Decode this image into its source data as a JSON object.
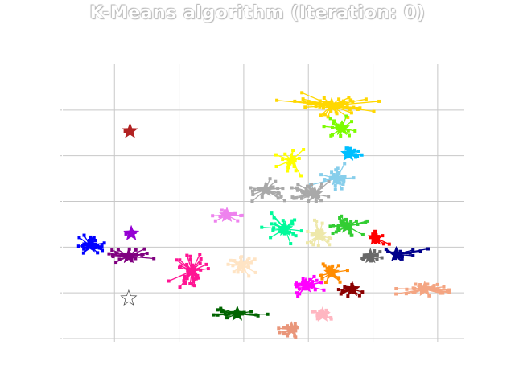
{
  "chart_data": {
    "type": "scatter",
    "title": "K-Means algorithm (Iteration: 0)",
    "xlabel": "",
    "ylabel": "",
    "xlim": [
      -9,
      22
    ],
    "ylim": [
      -20,
      10
    ],
    "grid": true,
    "tick_labels_visible": false,
    "xticks": [
      -5,
      0,
      5,
      10,
      15,
      20
    ],
    "yticks": [
      -20,
      -15,
      -10,
      -5,
      0,
      5
    ],
    "clusters": [
      {
        "color": "#ffd700",
        "centroid": [
          11.8,
          5.5
        ],
        "spread": [
          5.8,
          2.2
        ],
        "n": 50,
        "marker": "point"
      },
      {
        "color": "#7cfc00",
        "centroid": [
          12.6,
          3.0
        ],
        "spread": [
          2.6,
          2.2
        ],
        "n": 16,
        "marker": "point"
      },
      {
        "color": "#00bfff",
        "centroid": [
          13.1,
          0.2
        ],
        "spread": [
          1.8,
          1.2
        ],
        "n": 16,
        "marker": "point"
      },
      {
        "color": "#ffff00",
        "centroid": [
          8.7,
          -0.5
        ],
        "spread": [
          2.0,
          2.4
        ],
        "n": 18,
        "marker": "point"
      },
      {
        "color": "#87ceeb",
        "centroid": [
          12.2,
          -2.5
        ],
        "spread": [
          2.8,
          2.4
        ],
        "n": 24,
        "marker": "point"
      },
      {
        "color": "#a9a9a9",
        "centroid": [
          6.7,
          -3.7
        ],
        "spread": [
          3.4,
          2.0
        ],
        "n": 22,
        "marker": "point"
      },
      {
        "color": "#a9a9a9",
        "centroid": [
          10.5,
          -4.2
        ],
        "spread": [
          3.6,
          2.0
        ],
        "n": 30,
        "marker": "point"
      },
      {
        "color": "#ee82ee",
        "centroid": [
          3.7,
          -6.5
        ],
        "spread": [
          2.0,
          1.4
        ],
        "n": 14,
        "marker": "point"
      },
      {
        "color": "#00fa9a",
        "centroid": [
          8.2,
          -8.0
        ],
        "spread": [
          2.6,
          2.4
        ],
        "n": 24,
        "marker": "point"
      },
      {
        "color": "#eee8aa",
        "centroid": [
          10.8,
          -8.7
        ],
        "spread": [
          2.2,
          2.6
        ],
        "n": 22,
        "marker": "point"
      },
      {
        "color": "#32cd32",
        "centroid": [
          13.0,
          -7.7
        ],
        "spread": [
          2.6,
          2.4
        ],
        "n": 28,
        "marker": "point"
      },
      {
        "color": "#ff0000",
        "centroid": [
          15.2,
          -9.0
        ],
        "spread": [
          1.8,
          1.2
        ],
        "n": 16,
        "marker": "point"
      },
      {
        "color": "#696969",
        "centroid": [
          14.8,
          -11.0
        ],
        "spread": [
          1.8,
          1.0
        ],
        "n": 12,
        "marker": "point"
      },
      {
        "color": "#00008b",
        "centroid": [
          16.8,
          -10.8
        ],
        "spread": [
          3.6,
          1.4
        ],
        "n": 16,
        "marker": "point"
      },
      {
        "color": "#0000ff",
        "centroid": [
          -6.9,
          -9.8
        ],
        "spread": [
          2.2,
          2.0
        ],
        "n": 26,
        "marker": "point"
      },
      {
        "color": "#9400d3",
        "centroid": [
          -3.7,
          -8.5
        ],
        "spread": [
          1.6,
          0.6
        ],
        "n": 6,
        "marker": "point"
      },
      {
        "color": "#800080",
        "centroid": [
          -3.9,
          -11.0
        ],
        "spread": [
          2.8,
          1.8
        ],
        "n": 24,
        "marker": "point"
      },
      {
        "color": "#ff1493",
        "centroid": [
          1.0,
          -12.6
        ],
        "spread": [
          2.8,
          3.4
        ],
        "n": 36,
        "marker": "point"
      },
      {
        "color": "#ffe4c4",
        "centroid": [
          4.8,
          -11.9
        ],
        "spread": [
          2.6,
          2.2
        ],
        "n": 22,
        "marker": "point"
      },
      {
        "color": "#ff00ff",
        "centroid": [
          9.8,
          -14.2
        ],
        "spread": [
          2.2,
          1.8
        ],
        "n": 30,
        "marker": "point"
      },
      {
        "color": "#ff8c00",
        "centroid": [
          11.8,
          -12.8
        ],
        "spread": [
          2.0,
          2.2
        ],
        "n": 20,
        "marker": "point"
      },
      {
        "color": "#8b0000",
        "centroid": [
          13.4,
          -14.6
        ],
        "spread": [
          1.6,
          1.6
        ],
        "n": 14,
        "marker": "point"
      },
      {
        "color": "#f4a582",
        "centroid": [
          19.0,
          -14.6
        ],
        "spread": [
          3.2,
          1.4
        ],
        "n": 30,
        "marker": "point"
      },
      {
        "color": "#006400",
        "centroid": [
          4.5,
          -17.3
        ],
        "spread": [
          3.8,
          1.2
        ],
        "n": 20,
        "marker": "point"
      },
      {
        "color": "#e9967a",
        "centroid": [
          8.7,
          -19.0
        ],
        "spread": [
          1.8,
          2.0
        ],
        "n": 18,
        "marker": "point"
      },
      {
        "color": "#ffb6c1",
        "centroid": [
          11.1,
          -17.4
        ],
        "spread": [
          1.6,
          1.4
        ],
        "n": 12,
        "marker": "point"
      },
      {
        "color": "#b22222",
        "centroid": [
          -3.8,
          2.7
        ],
        "spread": [
          1.6,
          0.4
        ],
        "n": 4,
        "marker": "point"
      }
    ],
    "empty_centroids": [
      {
        "color": "#ffffff",
        "centroid": [
          -3.9,
          -15.6
        ]
      }
    ]
  }
}
